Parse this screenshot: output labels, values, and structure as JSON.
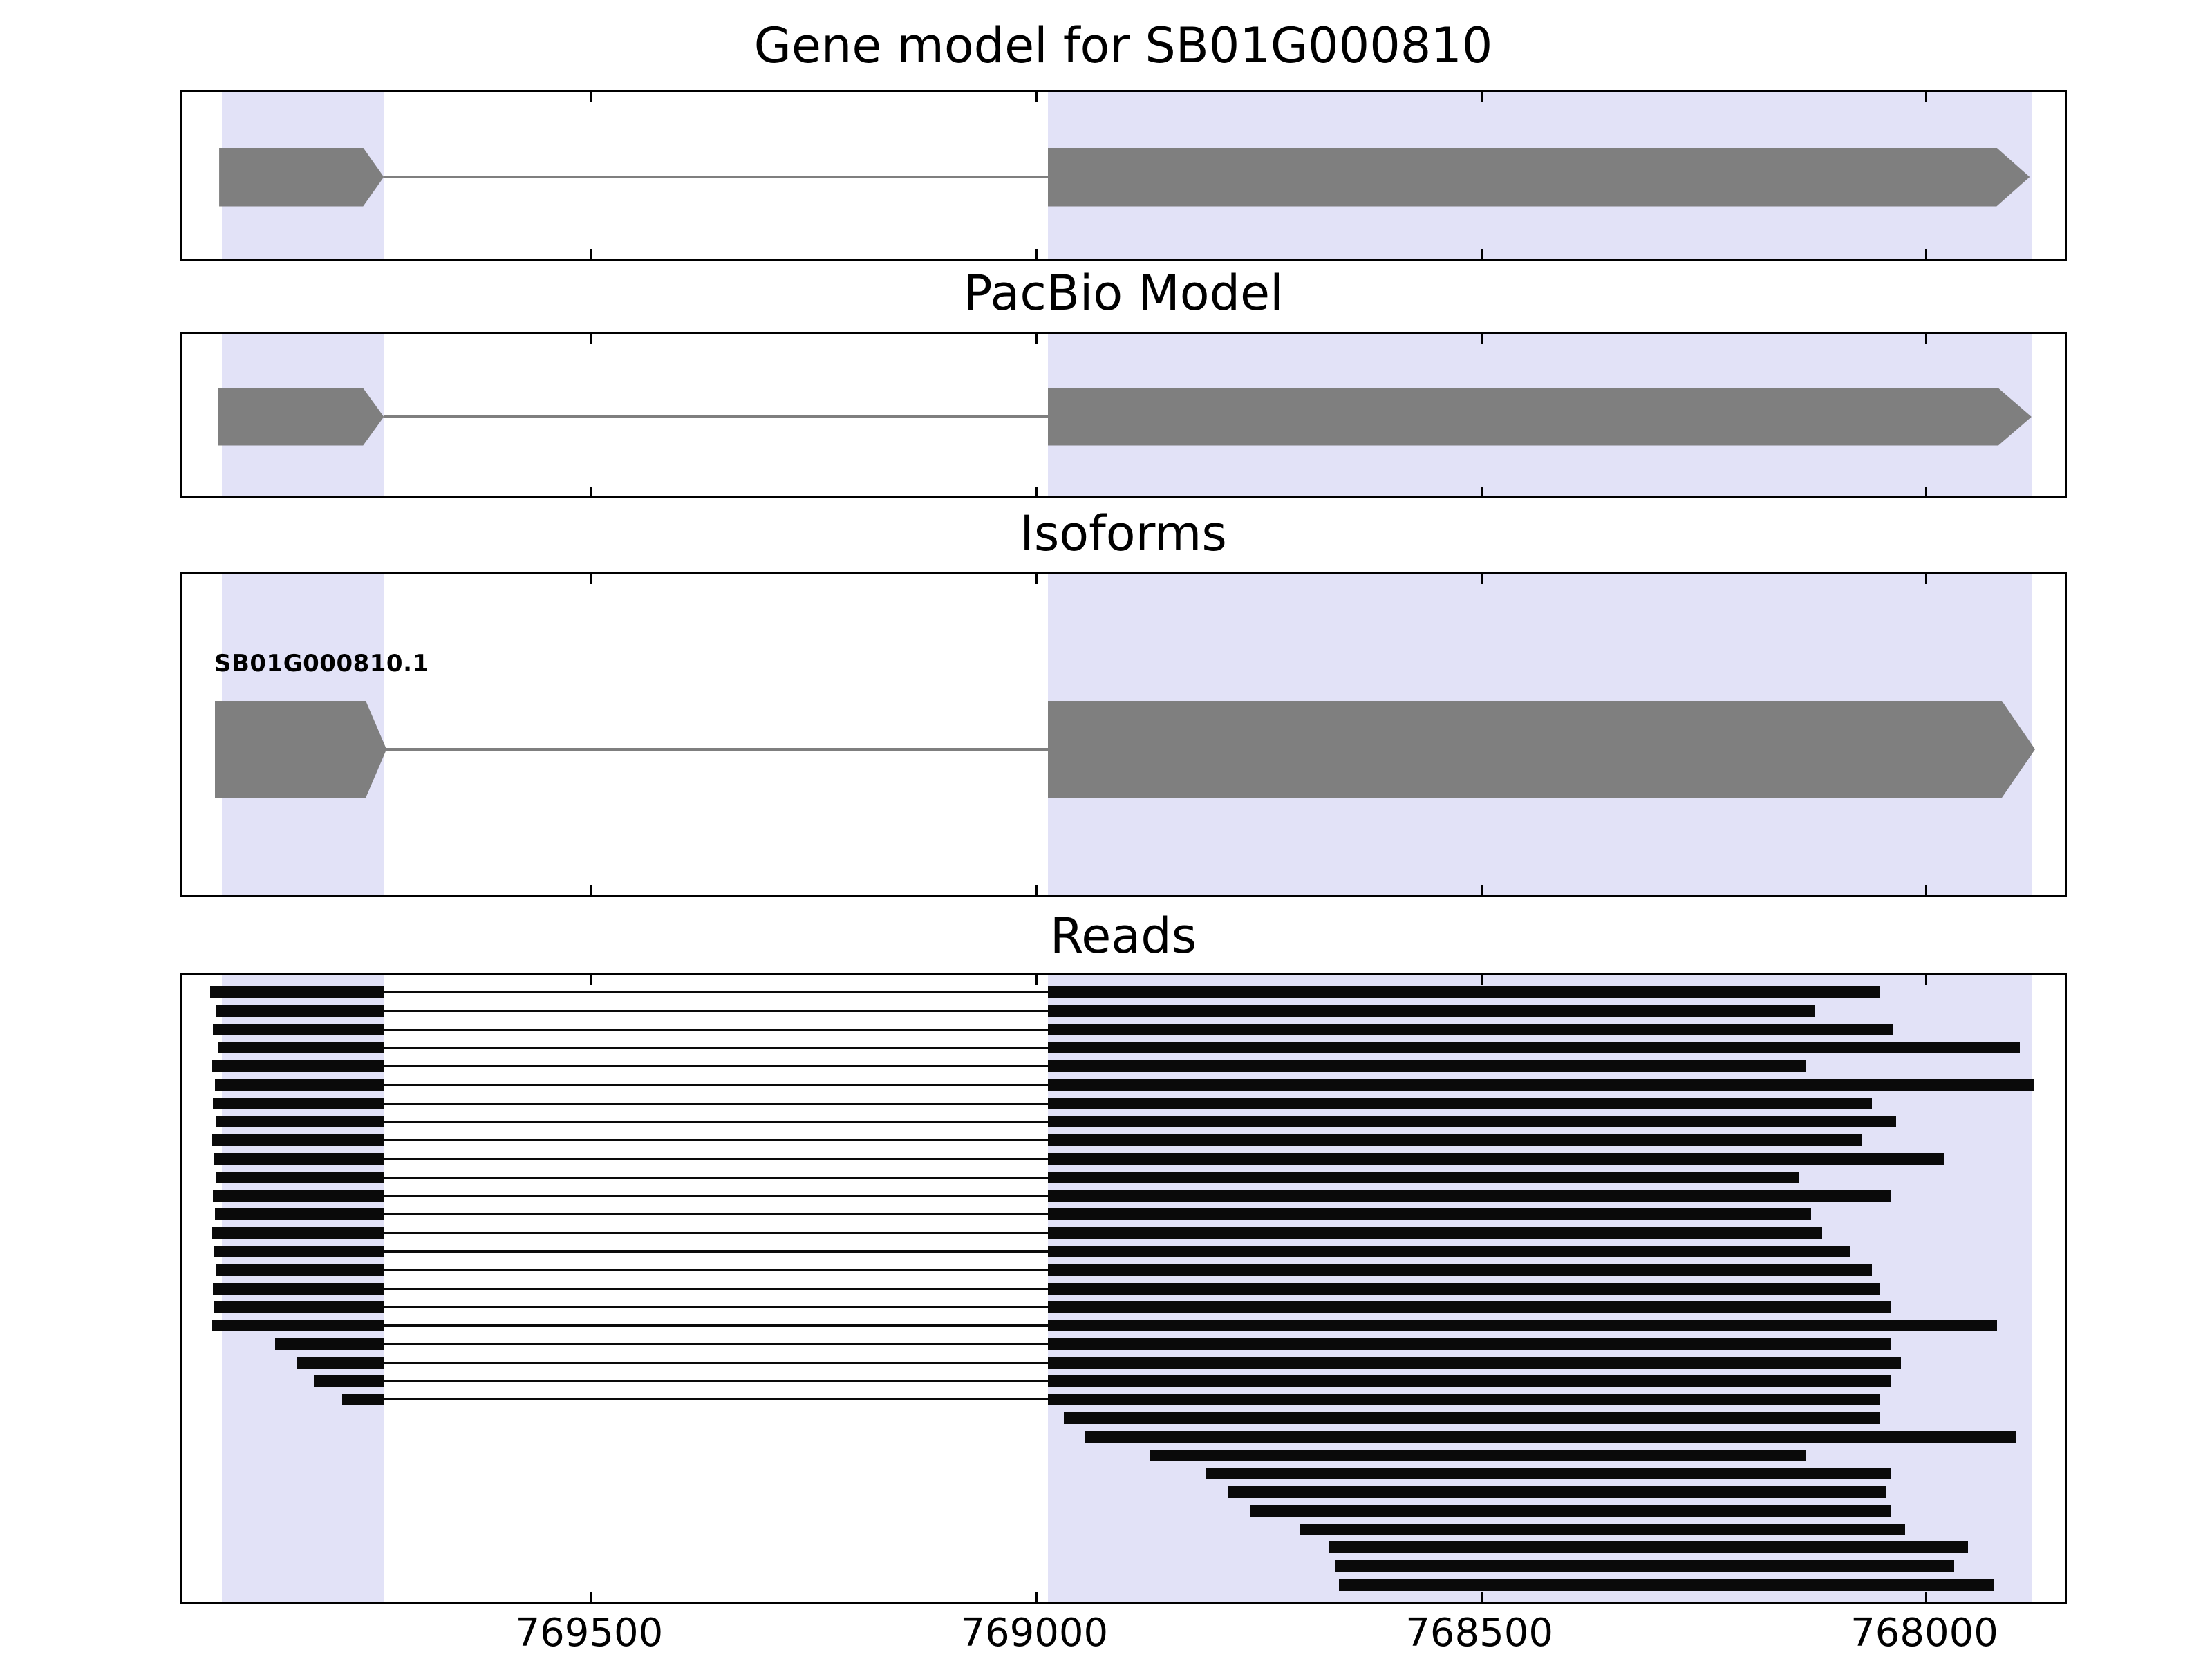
{
  "chart_data": {
    "type": "gene-browser",
    "x_axis": {
      "min": 767840,
      "max": 769960,
      "reversed": true,
      "ticks": [
        769500,
        769000,
        768500,
        768000
      ],
      "tick_labels": [
        "769500",
        "769000",
        "768500",
        "768000"
      ]
    },
    "colors": {
      "highlight": "#e2e2f7",
      "exon": "#7f7f7f",
      "read": "#0a0a0a"
    },
    "highlight_regions": [
      {
        "start": 769915,
        "end": 769733
      },
      {
        "start": 768987,
        "end": 767881
      }
    ],
    "junction": {
      "exon1_end": 769733,
      "exon2_start": 768987
    },
    "panels": [
      {
        "id": "gene_model",
        "title": "Gene model for SB01G000810",
        "features": [
          {
            "kind": "exon",
            "start": 769918,
            "end": 769733
          },
          {
            "kind": "intron",
            "start": 769733,
            "end": 768987
          },
          {
            "kind": "exon",
            "start": 768987,
            "end": 767884
          }
        ]
      },
      {
        "id": "pacbio",
        "title": "PacBio Model",
        "features": [
          {
            "kind": "exon",
            "start": 769920,
            "end": 769733
          },
          {
            "kind": "intron",
            "start": 769733,
            "end": 768987
          },
          {
            "kind": "exon",
            "start": 768987,
            "end": 767882
          }
        ]
      },
      {
        "id": "isoforms",
        "title": "Isoforms",
        "label": "SB01G000810.1",
        "features": [
          {
            "kind": "exon",
            "start": 769923,
            "end": 769730
          },
          {
            "kind": "intron",
            "start": 769730,
            "end": 768987
          },
          {
            "kind": "exon",
            "start": 768987,
            "end": 767878
          }
        ]
      },
      {
        "id": "reads",
        "title": "Reads"
      }
    ],
    "reads": [
      {
        "s": 769928,
        "e": 768053,
        "spliced": true
      },
      {
        "s": 769922,
        "e": 768125,
        "spliced": true
      },
      {
        "s": 769925,
        "e": 768037,
        "spliced": true
      },
      {
        "s": 769920,
        "e": 767895,
        "spliced": true
      },
      {
        "s": 769926,
        "e": 768136,
        "spliced": true
      },
      {
        "s": 769923,
        "e": 767879,
        "spliced": true
      },
      {
        "s": 769925,
        "e": 768061,
        "spliced": true
      },
      {
        "s": 769921,
        "e": 768034,
        "spliced": true
      },
      {
        "s": 769926,
        "e": 768072,
        "spliced": true
      },
      {
        "s": 769924,
        "e": 767980,
        "spliced": true
      },
      {
        "s": 769922,
        "e": 768144,
        "spliced": true
      },
      {
        "s": 769925,
        "e": 768040,
        "spliced": true
      },
      {
        "s": 769923,
        "e": 768130,
        "spliced": true
      },
      {
        "s": 769926,
        "e": 768117,
        "spliced": true
      },
      {
        "s": 769924,
        "e": 768085,
        "spliced": true
      },
      {
        "s": 769922,
        "e": 768061,
        "spliced": true
      },
      {
        "s": 769925,
        "e": 768053,
        "spliced": true
      },
      {
        "s": 769924,
        "e": 768040,
        "spliced": true
      },
      {
        "s": 769926,
        "e": 767921,
        "spliced": true
      },
      {
        "s": 769855,
        "e": 768040,
        "spliced": true
      },
      {
        "s": 769830,
        "e": 768029,
        "spliced": true
      },
      {
        "s": 769812,
        "e": 768040,
        "spliced": true
      },
      {
        "s": 769780,
        "e": 768053,
        "spliced": true
      },
      {
        "s": 768969,
        "e": 768053,
        "spliced": false
      },
      {
        "s": 768945,
        "e": 767900,
        "spliced": false
      },
      {
        "s": 768873,
        "e": 768136,
        "spliced": false
      },
      {
        "s": 768809,
        "e": 768040,
        "spliced": false
      },
      {
        "s": 768784,
        "e": 768045,
        "spliced": false
      },
      {
        "s": 768760,
        "e": 768040,
        "spliced": false
      },
      {
        "s": 768704,
        "e": 768024,
        "spliced": false
      },
      {
        "s": 768672,
        "e": 767953,
        "spliced": false
      },
      {
        "s": 768664,
        "e": 767969,
        "spliced": false
      },
      {
        "s": 768660,
        "e": 767924,
        "spliced": false
      }
    ]
  }
}
